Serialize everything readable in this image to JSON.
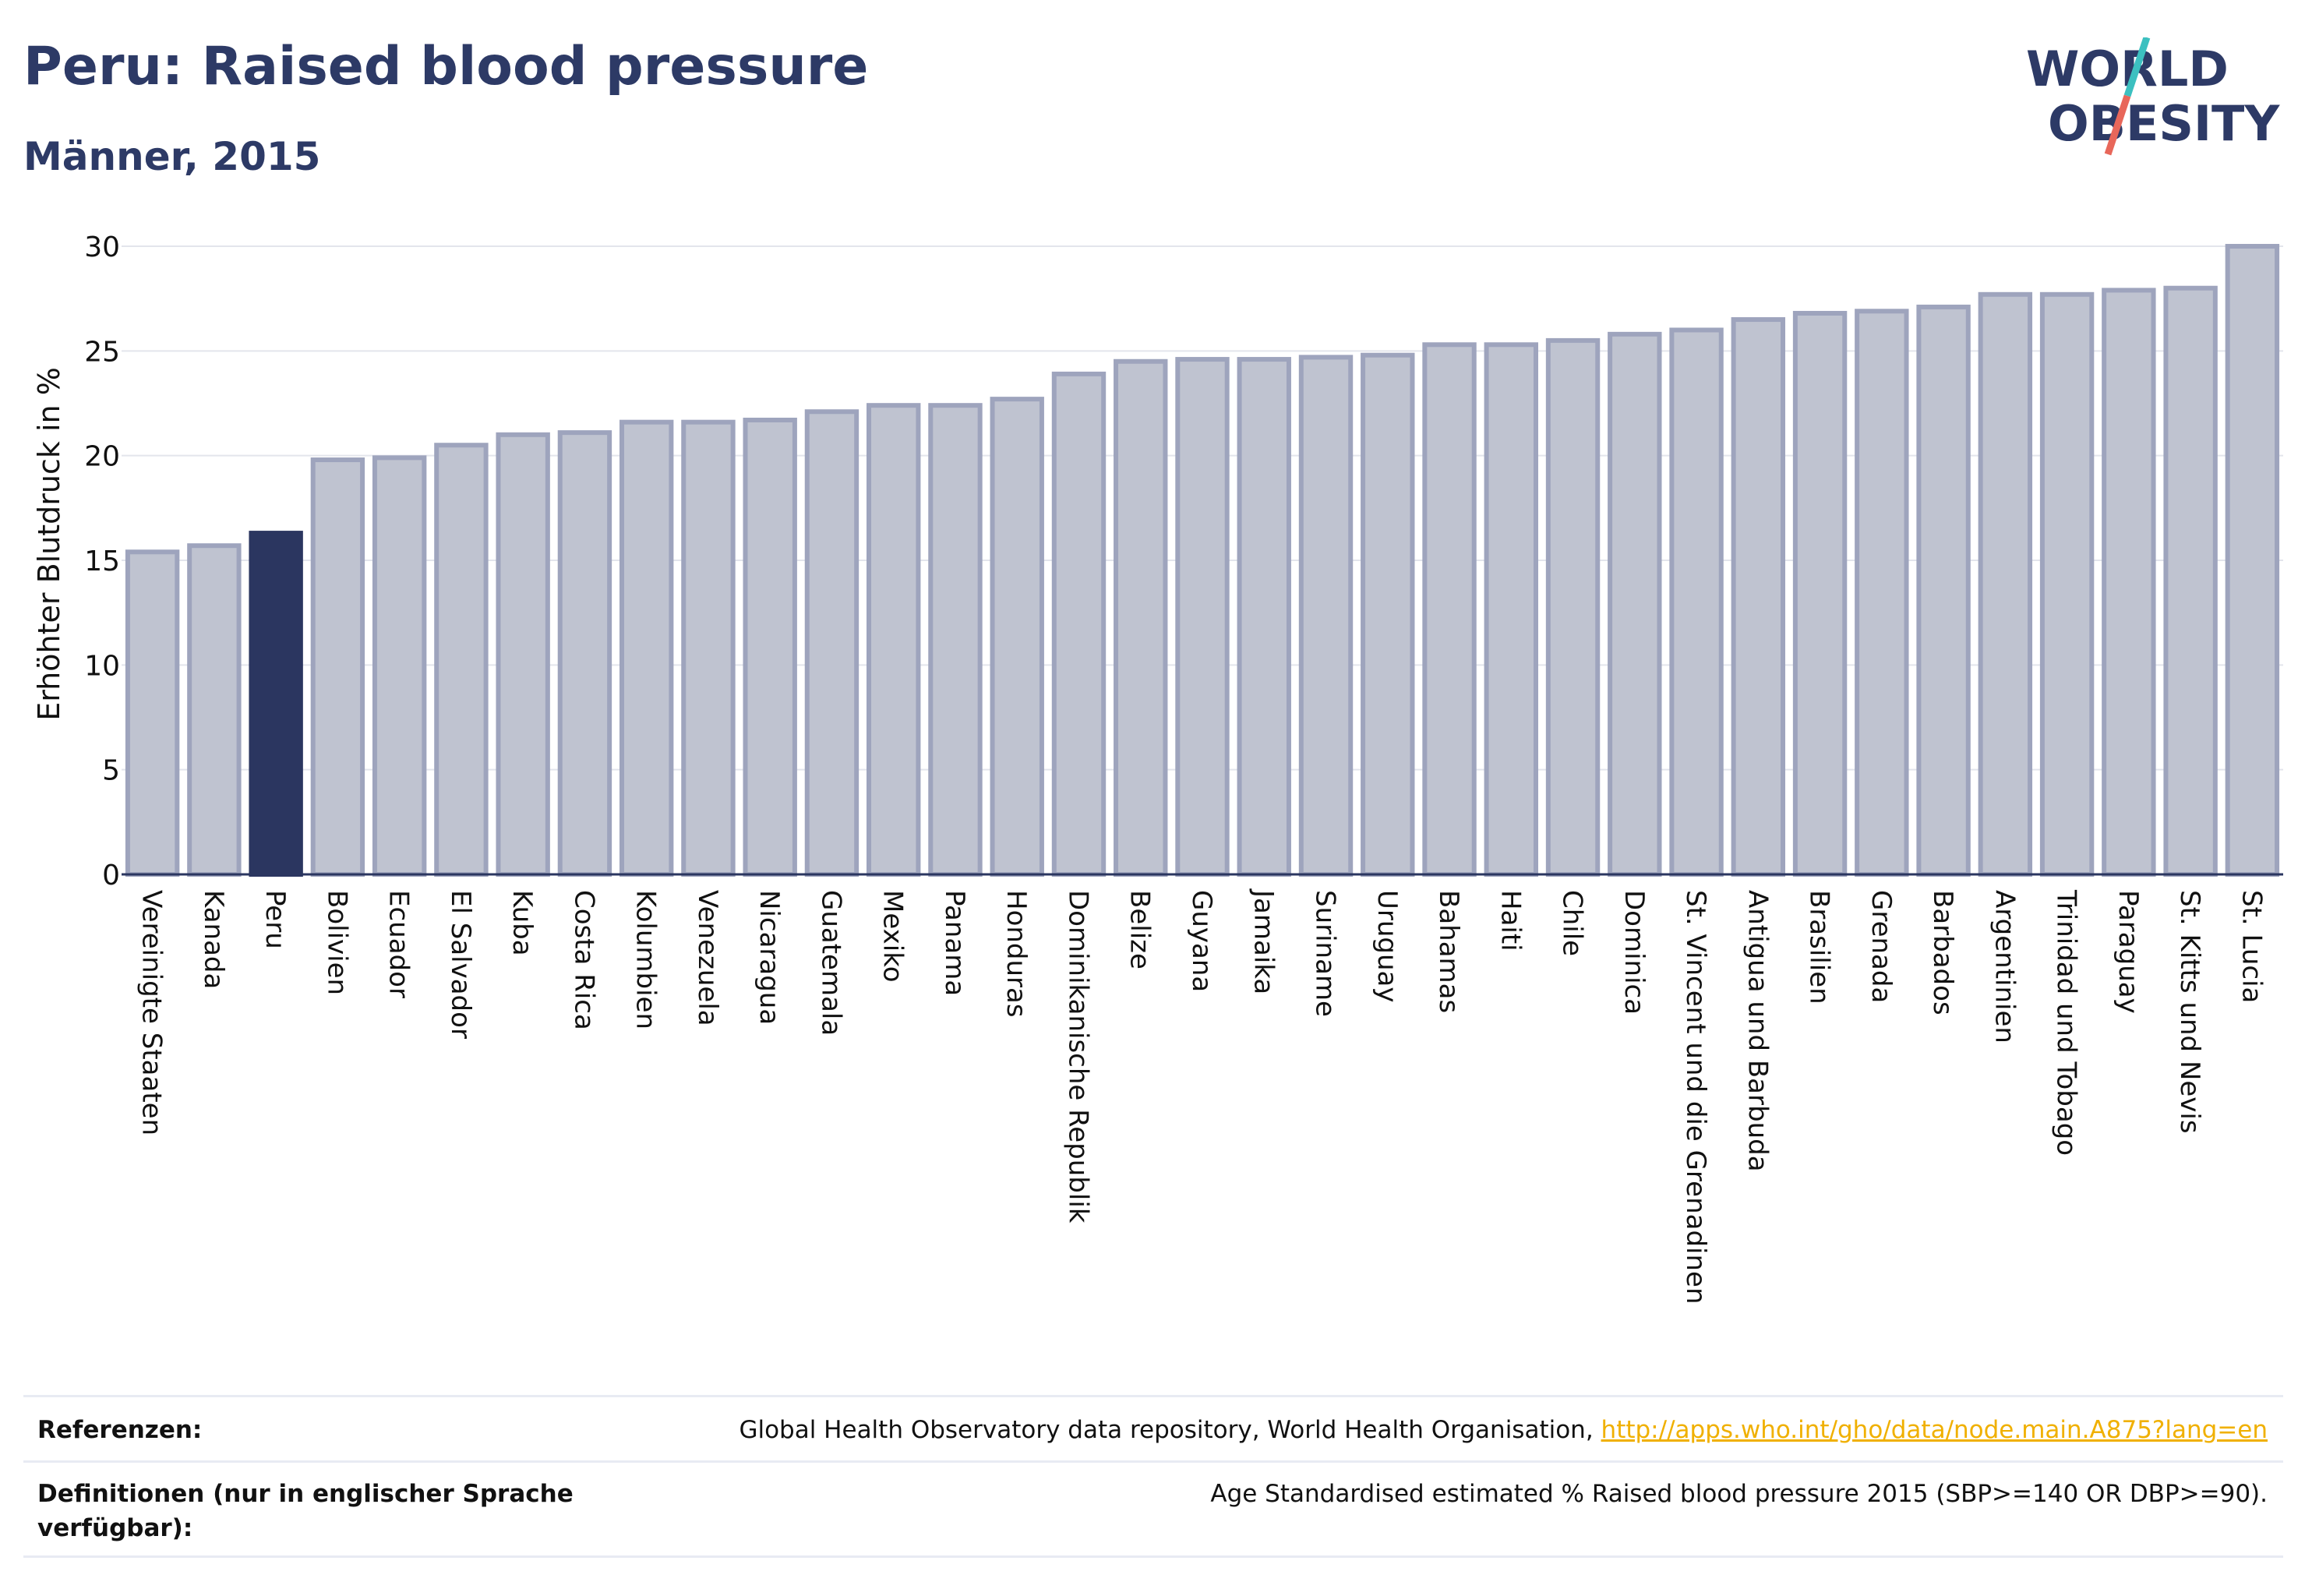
{
  "header": {
    "title": "Peru: Raised blood pressure",
    "subtitle": "Männer, 2015"
  },
  "logo": {
    "line1": "WORLD",
    "line2": "OBESITY"
  },
  "colors": {
    "highlight": "#2b3660",
    "bar_fill": "#bfc3d0",
    "bar_stroke": "#9ea4bd",
    "grid": "#e3e5ec",
    "link": "#f0b000",
    "logo_teal": "#3cc0c0",
    "logo_coral": "#e8675a"
  },
  "chart_data": {
    "type": "bar",
    "highlight": "Peru",
    "categories": [
      "Vereinigte Staaten",
      "Kanada",
      "Peru",
      "Bolivien",
      "Ecuador",
      "El Salvador",
      "Kuba",
      "Costa Rica",
      "Kolumbien",
      "Venezuela",
      "Nicaragua",
      "Guatemala",
      "Mexiko",
      "Panama",
      "Honduras",
      "Dominikanische Republik",
      "Belize",
      "Guyana",
      "Jamaika",
      "Suriname",
      "Uruguay",
      "Bahamas",
      "Haiti",
      "Chile",
      "Dominica",
      "St. Vincent und die Grenadinen",
      "Antigua und Barbuda",
      "Brasilien",
      "Grenada",
      "Barbados",
      "Argentinien",
      "Trinidad und Tobago",
      "Paraguay",
      "St. Kitts und Nevis",
      "St. Lucia"
    ],
    "values": [
      15.4,
      15.7,
      16.3,
      19.8,
      19.9,
      20.5,
      21.0,
      21.1,
      21.6,
      21.6,
      21.7,
      22.1,
      22.4,
      22.4,
      22.7,
      23.9,
      24.5,
      24.6,
      24.6,
      24.7,
      24.8,
      25.3,
      25.3,
      25.5,
      25.8,
      26.0,
      26.5,
      26.8,
      26.9,
      27.1,
      27.7,
      27.7,
      27.9,
      28.0,
      30.0
    ],
    "ylabel": "Erhöhter Blutdruck in %",
    "xlabel": "",
    "ylim": [
      0,
      30
    ],
    "yticks": [
      0,
      5,
      10,
      15,
      20,
      25,
      30
    ],
    "grid": true
  },
  "references": {
    "ref_label": "Referenzen:",
    "ref_text": "Global Health Observatory data repository, World Health Organisation, ",
    "ref_link": "http://apps.who.int/gho/data/node.main.A875?lang=en",
    "def_label": "Definitionen (nur in englischer Sprache verfügbar):",
    "def_text": "Age Standardised estimated % Raised blood pressure 2015 (SBP>=140 OR DBP>=90)."
  }
}
